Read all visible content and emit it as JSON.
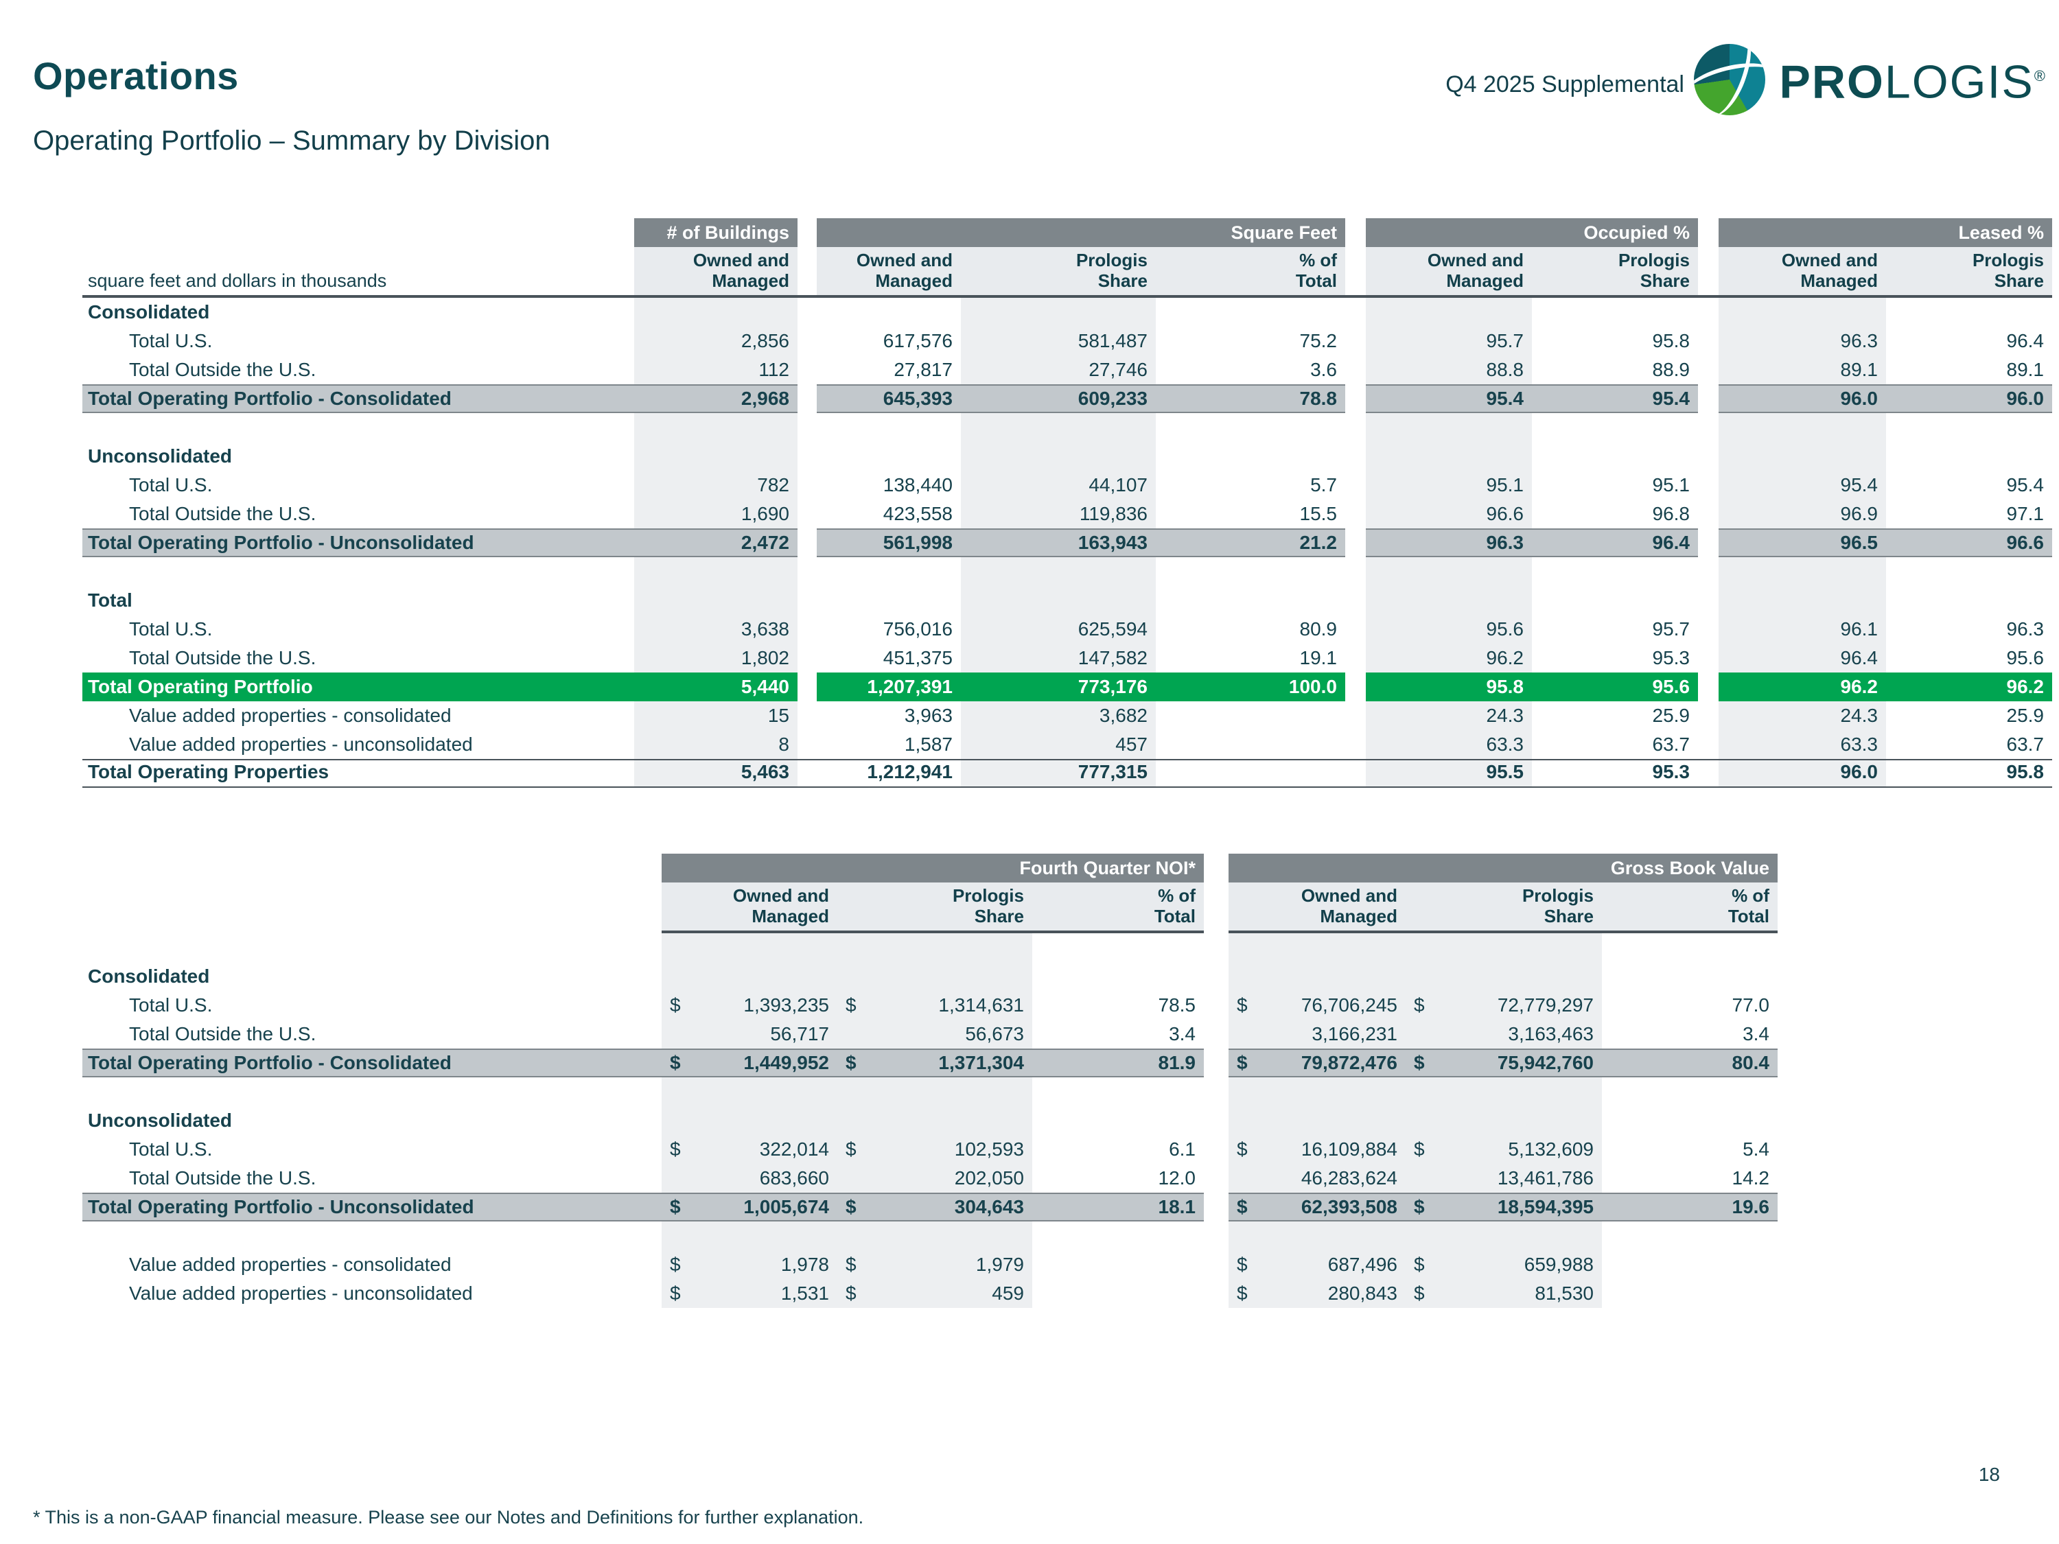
{
  "currency": "$",
  "header": {
    "title": "Operations",
    "subtitle": "Operating Portfolio – Summary by Division",
    "supplemental": "Q4 2025 Supplemental",
    "logo": {
      "bold": "PRO",
      "light": "LOGIS",
      "registered": "®"
    }
  },
  "table1": {
    "note": "square feet and dollars in thousands",
    "groups": [
      {
        "label": "# of Buildings",
        "cols": [
          "Owned and\nManaged"
        ]
      },
      {
        "label": "Square Feet",
        "cols": [
          "Owned and\nManaged",
          "Prologis\nShare",
          "% of\nTotal"
        ]
      },
      {
        "label": "Occupied %",
        "cols": [
          "Owned and\nManaged",
          "Prologis\nShare"
        ]
      },
      {
        "label": "Leased %",
        "cols": [
          "Owned and\nManaged",
          "Prologis\nShare"
        ]
      }
    ],
    "rows": [
      {
        "type": "section",
        "label": "Consolidated",
        "cells": [
          "",
          "",
          "",
          "",
          "",
          "",
          "",
          ""
        ]
      },
      {
        "type": "data",
        "label": "Total U.S.",
        "cells": [
          "2,856",
          "617,576",
          "581,487",
          "75.2",
          "95.7",
          "95.8",
          "96.3",
          "96.4"
        ]
      },
      {
        "type": "data",
        "label": "Total Outside the U.S.",
        "cells": [
          "112",
          "27,817",
          "27,746",
          "3.6",
          "88.8",
          "88.9",
          "89.1",
          "89.1"
        ]
      },
      {
        "type": "total-gray",
        "label": "Total Operating Portfolio - Consolidated",
        "cells": [
          "2,968",
          "645,393",
          "609,233",
          "78.8",
          "95.4",
          "95.4",
          "96.0",
          "96.0"
        ]
      },
      {
        "type": "blank",
        "label": "",
        "cells": [
          "",
          "",
          "",
          "",
          "",
          "",
          "",
          ""
        ]
      },
      {
        "type": "section",
        "label": "Unconsolidated",
        "cells": [
          "",
          "",
          "",
          "",
          "",
          "",
          "",
          ""
        ]
      },
      {
        "type": "data",
        "label": "Total U.S.",
        "cells": [
          "782",
          "138,440",
          "44,107",
          "5.7",
          "95.1",
          "95.1",
          "95.4",
          "95.4"
        ]
      },
      {
        "type": "data",
        "label": "Total Outside the U.S.",
        "cells": [
          "1,690",
          "423,558",
          "119,836",
          "15.5",
          "96.6",
          "96.8",
          "96.9",
          "97.1"
        ]
      },
      {
        "type": "total-gray",
        "label": "Total Operating Portfolio - Unconsolidated",
        "cells": [
          "2,472",
          "561,998",
          "163,943",
          "21.2",
          "96.3",
          "96.4",
          "96.5",
          "96.6"
        ]
      },
      {
        "type": "blank",
        "label": "",
        "cells": [
          "",
          "",
          "",
          "",
          "",
          "",
          "",
          ""
        ]
      },
      {
        "type": "section",
        "label": "Total",
        "cells": [
          "",
          "",
          "",
          "",
          "",
          "",
          "",
          ""
        ]
      },
      {
        "type": "data",
        "label": "Total U.S.",
        "cells": [
          "3,638",
          "756,016",
          "625,594",
          "80.9",
          "95.6",
          "95.7",
          "96.1",
          "96.3"
        ]
      },
      {
        "type": "data",
        "label": "Total Outside the U.S.",
        "cells": [
          "1,802",
          "451,375",
          "147,582",
          "19.1",
          "96.2",
          "95.3",
          "96.4",
          "95.6"
        ]
      },
      {
        "type": "total-green",
        "label": "Total Operating Portfolio",
        "cells": [
          "5,440",
          "1,207,391",
          "773,176",
          "100.0",
          "95.8",
          "95.6",
          "96.2",
          "96.2"
        ]
      },
      {
        "type": "data",
        "label": "Value added properties - consolidated",
        "cells": [
          "15",
          "3,963",
          "3,682",
          "",
          "24.3",
          "25.9",
          "24.3",
          "25.9"
        ]
      },
      {
        "type": "data",
        "label": "Value added properties - unconsolidated",
        "cells": [
          "8",
          "1,587",
          "457",
          "",
          "63.3",
          "63.7",
          "63.3",
          "63.7"
        ]
      },
      {
        "type": "grand",
        "label": "Total Operating Properties",
        "cells": [
          "5,463",
          "1,212,941",
          "777,315",
          "",
          "95.5",
          "95.3",
          "96.0",
          "95.8"
        ]
      }
    ]
  },
  "table2": {
    "groups": [
      {
        "label": "Fourth Quarter NOI*",
        "cols": [
          "Owned and\nManaged",
          "Prologis\nShare",
          "% of\nTotal"
        ]
      },
      {
        "label": "Gross Book Value",
        "cols": [
          "Owned and\nManaged",
          "Prologis\nShare",
          "% of\nTotal"
        ]
      }
    ],
    "rows": [
      {
        "type": "blank",
        "label": "",
        "cells": [
          "",
          "",
          "",
          "",
          "",
          ""
        ]
      },
      {
        "type": "section",
        "label": "Consolidated",
        "cells": [
          "",
          "",
          "",
          "",
          "",
          ""
        ]
      },
      {
        "type": "data",
        "label": "Total U.S.",
        "dollar": true,
        "cells": [
          "1,393,235",
          "1,314,631",
          "78.5",
          "76,706,245",
          "72,779,297",
          "77.0"
        ]
      },
      {
        "type": "data",
        "label": "Total Outside the U.S.",
        "cells": [
          "56,717",
          "56,673",
          "3.4",
          "3,166,231",
          "3,163,463",
          "3.4"
        ]
      },
      {
        "type": "total-gray",
        "label": "Total Operating Portfolio - Consolidated",
        "dollar": true,
        "cells": [
          "1,449,952",
          "1,371,304",
          "81.9",
          "79,872,476",
          "75,942,760",
          "80.4"
        ]
      },
      {
        "type": "blank",
        "label": "",
        "cells": [
          "",
          "",
          "",
          "",
          "",
          ""
        ]
      },
      {
        "type": "section",
        "label": "Unconsolidated",
        "cells": [
          "",
          "",
          "",
          "",
          "",
          ""
        ]
      },
      {
        "type": "data",
        "label": "Total U.S.",
        "dollar": true,
        "cells": [
          "322,014",
          "102,593",
          "6.1",
          "16,109,884",
          "5,132,609",
          "5.4"
        ]
      },
      {
        "type": "data",
        "label": "Total Outside the U.S.",
        "cells": [
          "683,660",
          "202,050",
          "12.0",
          "46,283,624",
          "13,461,786",
          "14.2"
        ]
      },
      {
        "type": "total-gray",
        "label": "Total Operating Portfolio - Unconsolidated",
        "dollar": true,
        "cells": [
          "1,005,674",
          "304,643",
          "18.1",
          "62,393,508",
          "18,594,395",
          "19.6"
        ]
      },
      {
        "type": "blank",
        "label": "",
        "cells": [
          "",
          "",
          "",
          "",
          "",
          ""
        ]
      },
      {
        "type": "data",
        "label": "Value added properties - consolidated",
        "dollar": true,
        "cells": [
          "1,978",
          "1,979",
          "",
          "687,496",
          "659,988",
          ""
        ]
      },
      {
        "type": "data",
        "label": "Value added properties - unconsolidated",
        "dollar": true,
        "cells": [
          "1,531",
          "459",
          "",
          "280,843",
          "81,530",
          ""
        ]
      }
    ]
  },
  "page": {
    "number": "18",
    "footnote": "* This is a non-GAAP financial measure. Please see our Notes and Definitions for further explanation."
  }
}
